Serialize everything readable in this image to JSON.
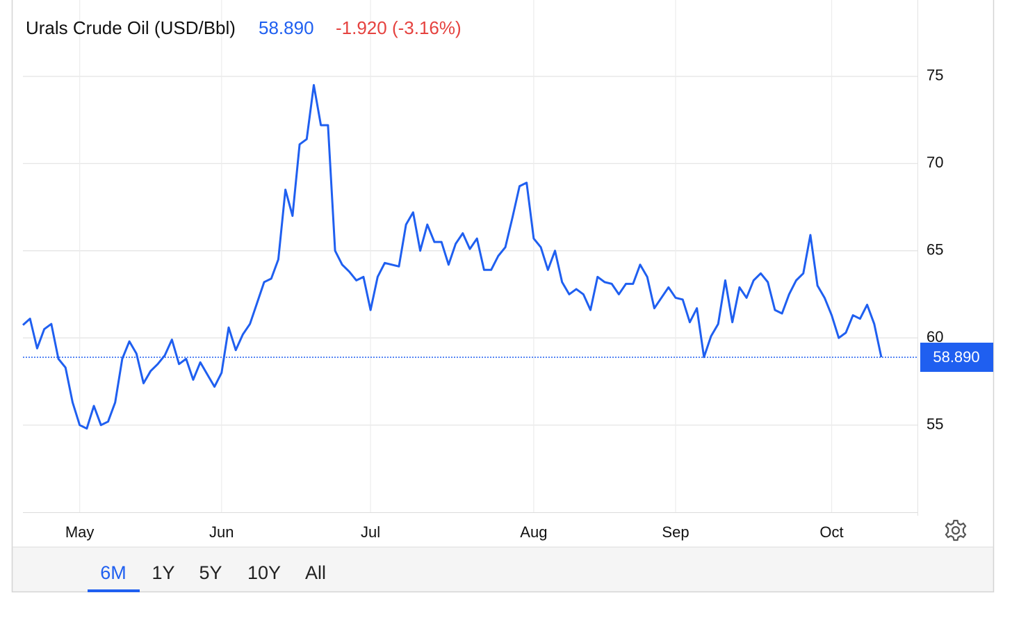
{
  "chart_data": {
    "type": "line",
    "title": "Urals Crude Oil (USD/Bbl)",
    "price": "58.890",
    "change": "-1.920 (-3.16%)",
    "color": "#1f5ff0",
    "change_color": "#e5423f",
    "categories": [
      null,
      null,
      null,
      null,
      null,
      null,
      null,
      null,
      "May",
      null,
      null,
      null,
      null,
      null,
      null,
      null,
      null,
      null,
      null,
      null,
      null,
      null,
      null,
      null,
      null,
      null,
      null,
      null,
      "Jun",
      null,
      null,
      null,
      null,
      null,
      null,
      null,
      null,
      null,
      null,
      null,
      null,
      null,
      null,
      null,
      null,
      null,
      null,
      null,
      null,
      "Jul",
      null,
      null,
      null,
      null,
      null,
      null,
      null,
      null,
      null,
      null,
      null,
      null,
      null,
      null,
      null,
      null,
      null,
      null,
      null,
      null,
      null,
      null,
      "Aug",
      null,
      null,
      null,
      null,
      null,
      null,
      null,
      null,
      null,
      null,
      null,
      null,
      null,
      null,
      null,
      null,
      null,
      null,
      null,
      "Sep",
      null,
      null,
      null,
      null,
      null,
      null,
      null,
      null,
      null,
      null,
      null,
      null,
      null,
      null,
      null,
      null,
      null,
      null,
      null,
      null,
      null,
      "Oct",
      null,
      null,
      null,
      null,
      null,
      null,
      null
    ],
    "values": [
      60.74,
      61.1,
      59.4,
      60.5,
      60.8,
      58.8,
      58.3,
      56.3,
      55.0,
      54.8,
      56.1,
      55.0,
      55.2,
      56.3,
      58.8,
      59.8,
      59.1,
      57.4,
      58.1,
      58.5,
      59.0,
      59.9,
      58.5,
      58.8,
      57.6,
      58.6,
      57.9,
      57.2,
      58.0,
      60.6,
      59.3,
      60.2,
      60.8,
      62.0,
      63.2,
      63.4,
      64.5,
      68.5,
      67.0,
      71.1,
      71.4,
      74.5,
      72.2,
      72.2,
      65.0,
      64.2,
      63.8,
      63.3,
      63.5,
      61.6,
      63.5,
      64.3,
      64.2,
      64.1,
      66.5,
      67.2,
      65.0,
      66.5,
      65.5,
      65.5,
      64.2,
      65.4,
      66.0,
      65.1,
      65.7,
      63.9,
      63.9,
      64.7,
      65.2,
      66.9,
      68.7,
      68.9,
      65.7,
      65.2,
      63.9,
      65.0,
      63.2,
      62.5,
      62.8,
      62.5,
      61.6,
      63.5,
      63.2,
      63.1,
      62.5,
      63.1,
      63.1,
      64.2,
      63.5,
      61.7,
      62.3,
      62.9,
      62.3,
      62.2,
      60.9,
      61.7,
      58.9,
      60.1,
      60.8,
      63.3,
      60.9,
      62.9,
      62.3,
      63.3,
      63.7,
      63.2,
      61.6,
      61.4,
      62.5,
      63.3,
      63.7,
      65.9,
      63.0,
      62.3,
      61.3,
      60.0,
      60.3,
      61.3,
      61.1,
      61.9,
      60.8,
      58.89
    ],
    "ylim": [
      50,
      79.3
    ],
    "yticks": [
      55,
      60,
      65,
      70,
      75
    ],
    "grid": true,
    "range_buttons": [
      "6M",
      "1Y",
      "5Y",
      "10Y",
      "All"
    ],
    "active_range": 0
  }
}
